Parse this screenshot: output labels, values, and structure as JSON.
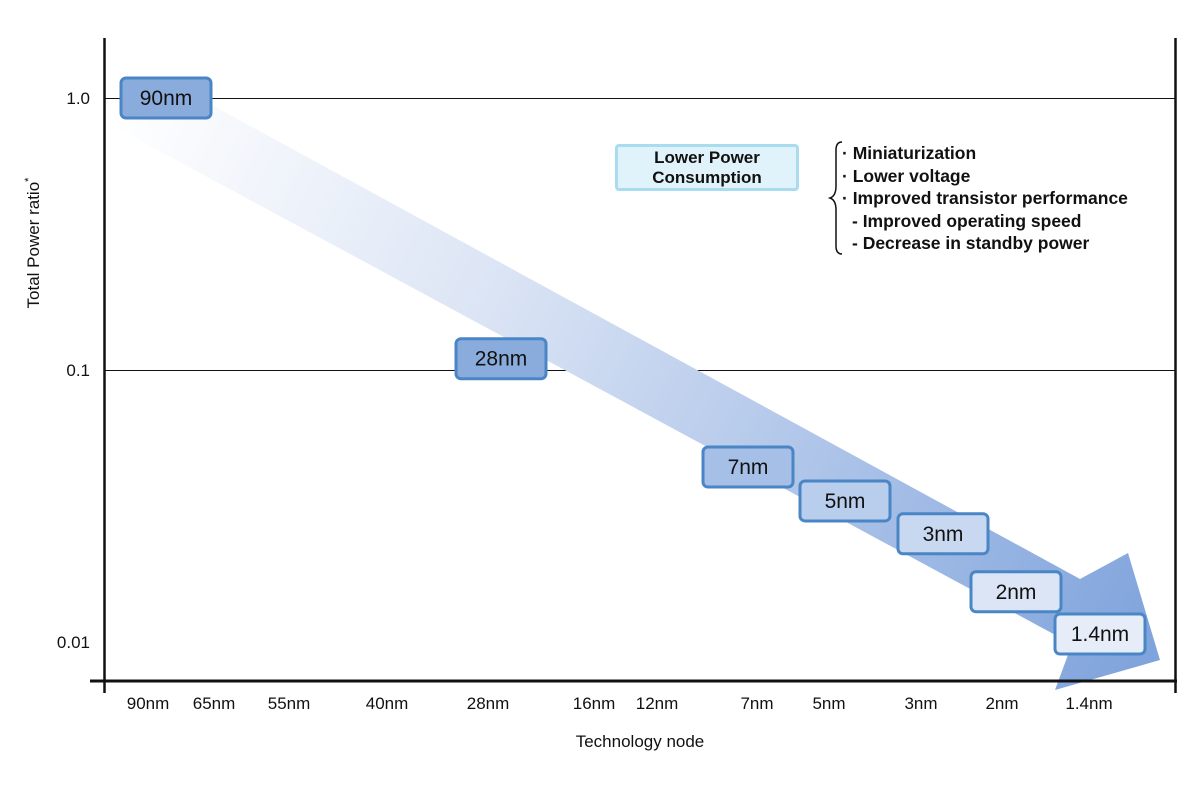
{
  "chart_data": {
    "type": "line",
    "title": "",
    "xlabel": "Technology node",
    "ylabel": "Total Power ratio",
    "ylabel_mark": "*",
    "y_scale": "log",
    "ylim": [
      0.01,
      1.0
    ],
    "y_ticks": [
      {
        "value": 1.0,
        "label": "1.0"
      },
      {
        "value": 0.1,
        "label": "0.1"
      },
      {
        "value": 0.01,
        "label": "0.01"
      }
    ],
    "categories": [
      "90nm",
      "65nm",
      "55nm",
      "40nm",
      "28nm",
      "16nm",
      "12nm",
      "7nm",
      "5nm",
      "3nm",
      "2nm",
      "1.4nm"
    ],
    "highlighted_nodes": [
      {
        "label": "90nm",
        "x": "90nm",
        "y": 1.0
      },
      {
        "label": "28nm",
        "x": "28nm",
        "y": 0.11
      },
      {
        "label": "7nm",
        "x": "7nm",
        "y": 0.044
      },
      {
        "label": "5nm",
        "x": "5nm",
        "y": 0.033
      },
      {
        "label": "3nm",
        "x": "3nm",
        "y": 0.025
      },
      {
        "label": "2nm",
        "x": "2nm",
        "y": 0.0153
      },
      {
        "label": "1.4nm",
        "x": "1.4nm",
        "y": 0.0107
      }
    ],
    "grid": "horizontal lines at 1.0 and 0.1",
    "annotations": {
      "callout": [
        "Lower Power",
        "Consumption"
      ],
      "factors": [
        {
          "text": "· Miniaturization",
          "indent": false
        },
        {
          "text": "· Lower voltage",
          "indent": false
        },
        {
          "text": "· Improved transistor performance",
          "indent": false
        },
        {
          "text": "- Improved operating speed",
          "indent": true
        },
        {
          "text": "- Decrease in standby power",
          "indent": true
        }
      ]
    },
    "colors": {
      "arrow_start": "#ffffff",
      "arrow_end": "#7fa3dc",
      "node_border": "#4a86c5",
      "node_fill_dark": "#8aacdc",
      "node_fill_light": "#e4ecf8",
      "callout_border": "#a9dcef",
      "callout_fill": "#e1f3fa"
    }
  }
}
